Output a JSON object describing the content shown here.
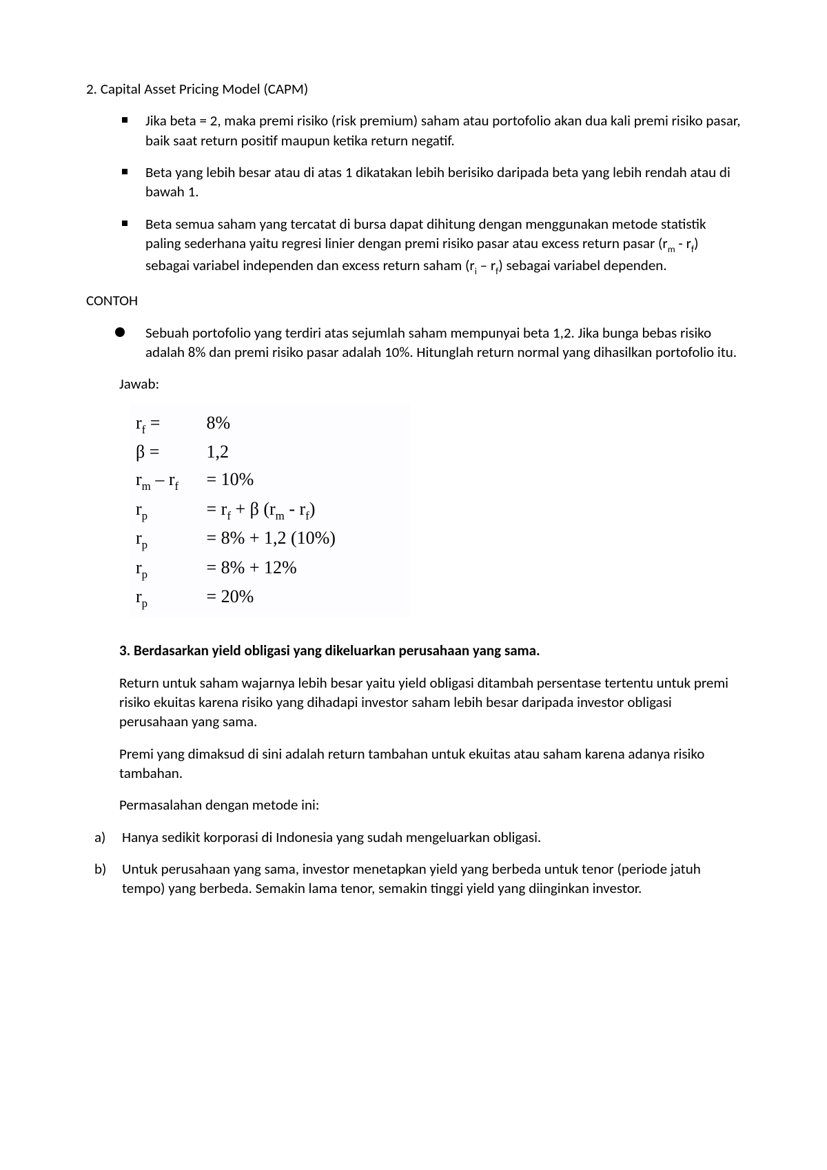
{
  "section2": {
    "title": "2. Capital Asset Pricing Model (CAPM)",
    "bullets": [
      "Jika beta = 2, maka premi risiko (risk premium) saham atau portofolio akan dua kali premi risiko pasar, baik saat return positif maupun ketika return negatif.",
      "Beta yang lebih besar atau di atas 1 dikatakan lebih berisiko daripada beta yang lebih rendah atau di bawah 1."
    ],
    "bullet3_parts": {
      "p1": "Beta semua saham yang tercatat di bursa dapat dihitung dengan menggunakan metode statistik paling sederhana yaitu regresi linier dengan premi risiko pasar atau excess return pasar (r",
      "sub_m": "m",
      "mid1": " - r",
      "sub_f": "f",
      "mid2": ") sebagai variabel independen dan excess return saham (r",
      "sub_i": "i",
      "mid3": " – r",
      "sub_f2": "f",
      "p2": ") sebagai variabel dependen."
    }
  },
  "contoh": {
    "label": "CONTOH",
    "item": "Sebuah portofolio yang terdiri atas sejumlah saham mempunyai beta 1,2. Jika bunga bebas risiko adalah 8% dan premi risiko pasar adalah 10%. Hitunglah return normal yang dihasilkan portofolio itu.",
    "jawab_label": "Jawab:"
  },
  "formula": {
    "rows": [
      {
        "lhs": "r<sub class=\"sub\">f</sub> =",
        "rhs": " 8%"
      },
      {
        "lhs": "β =",
        "rhs": " 1,2"
      },
      {
        "lhs": "r<sub class=\"sub\">m</sub> – r<sub class=\"sub\">f</sub>",
        "rhs": " = 10%"
      },
      {
        "lhs": "r<sub class=\"sub\">p</sub>",
        "rhs": "  =  r<sub class=\"sub\">f</sub> + β (r<sub class=\"sub\">m</sub> - r<sub class=\"sub\">f</sub>)"
      },
      {
        "lhs": "r<sub class=\"sub\">p</sub>",
        "rhs": "  =  8% + 1,2 (10%)"
      },
      {
        "lhs": "r<sub class=\"sub\">p</sub>",
        "rhs": "  =  8% + 12%"
      },
      {
        "lhs": "r<sub class=\"sub\">p</sub>",
        "rhs": "  =  20%"
      }
    ]
  },
  "section3": {
    "title": "3. Berdasarkan yield obligasi yang dikeluarkan perusahaan yang sama.",
    "para1": "Return untuk saham wajarnya lebih besar yaitu yield obligasi ditambah persentase tertentu untuk premi risiko ekuitas karena risiko yang dihadapi investor saham lebih besar daripada investor obligasi perusahaan yang sama.",
    "para2": "Premi yang dimaksud di sini adalah return tambahan untuk ekuitas atau saham karena adanya risiko tambahan.",
    "para3": "Permasalahan dengan metode ini:",
    "letters": [
      {
        "marker": "a)",
        "text": "Hanya sedikit korporasi di Indonesia yang sudah mengeluarkan obligasi."
      },
      {
        "marker": "b)",
        "text": "Untuk perusahaan yang sama, investor menetapkan yield yang berbeda untuk tenor (periode jatuh tempo) yang berbeda. Semakin lama tenor, semakin tinggi yield yang diinginkan investor."
      }
    ]
  }
}
